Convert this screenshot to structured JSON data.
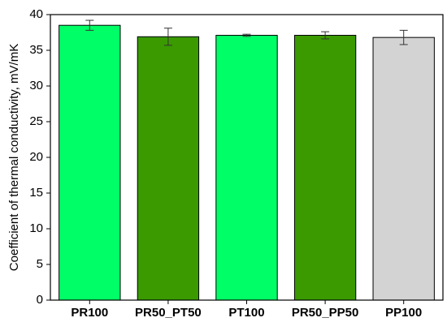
{
  "chart_data": {
    "type": "bar",
    "y_label": "Coefficient of thermal conductivity, mV/mK",
    "categories": [
      "PR100",
      "PR50_PT50",
      "PT100",
      "PR50_PP50",
      "PP100"
    ],
    "values": [
      38.5,
      36.9,
      37.1,
      37.1,
      36.8
    ],
    "errors": [
      0.7,
      1.2,
      0.15,
      0.5,
      1.0
    ],
    "colors": [
      "#00ff66",
      "#3a9a00",
      "#00ff66",
      "#3a9a00",
      "#d3d3d3"
    ],
    "ylim": [
      0,
      40
    ],
    "yticks": [
      0,
      5,
      10,
      15,
      20,
      25,
      30,
      35,
      40
    ]
  }
}
